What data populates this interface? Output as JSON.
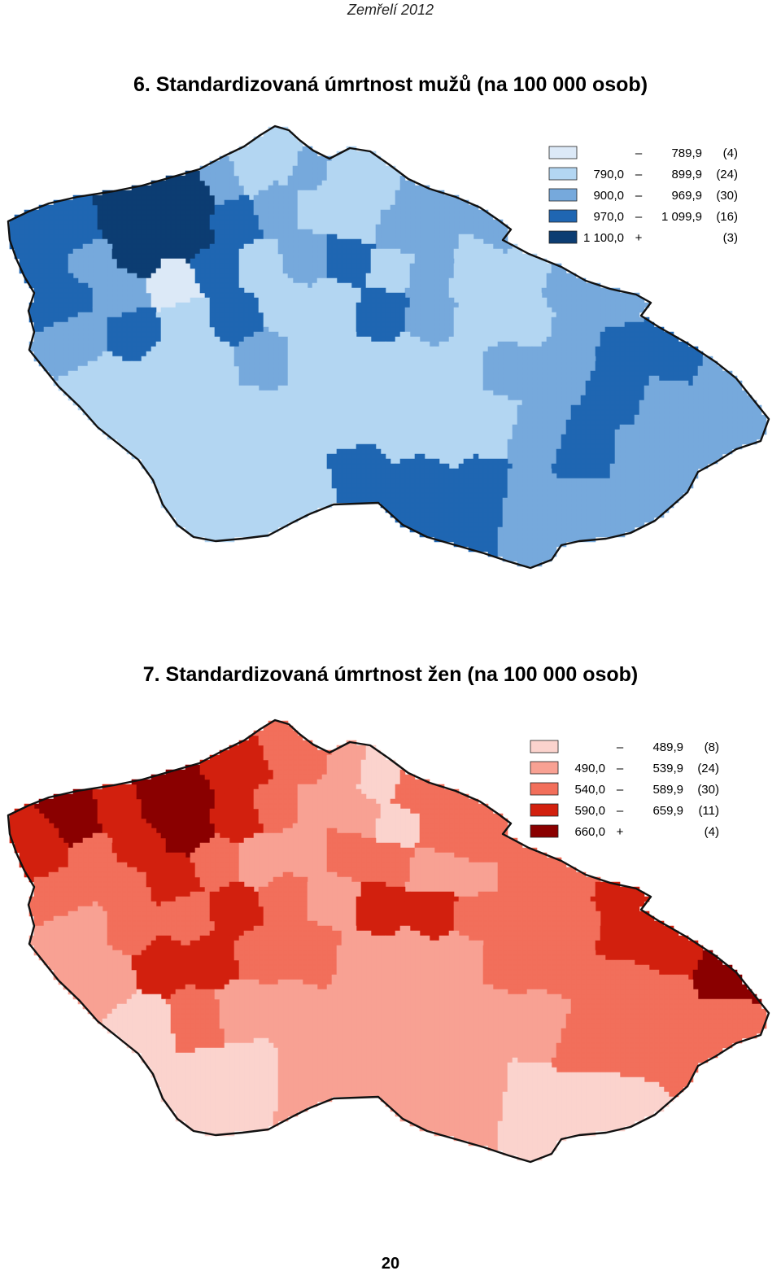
{
  "header": {
    "text": "Zemřelí 2012"
  },
  "maps": [
    {
      "title": "6. Standardizovaná úmrtnost mužů (na 100 000 osob)",
      "legend": [
        {
          "from": "",
          "sep": "–",
          "to": "789,9",
          "count": "(4)",
          "color": "#dce9f7"
        },
        {
          "from": "790,0",
          "sep": "–",
          "to": "899,9",
          "count": "(24)",
          "color": "#b3d6f2"
        },
        {
          "from": "900,0",
          "sep": "–",
          "to": "969,9",
          "count": "(30)",
          "color": "#76a9dc"
        },
        {
          "from": "970,0",
          "sep": "–",
          "to": "1 099,9",
          "count": "(16)",
          "color": "#1f66b2"
        },
        {
          "from": "1 100,0",
          "sep": "+",
          "to": "",
          "count": "(3)",
          "color": "#0c3d72"
        }
      ]
    },
    {
      "title": "7. Standardizovaná úmrtnost žen (na 100 000 osob)",
      "legend": [
        {
          "from": "",
          "sep": "–",
          "to": "489,9",
          "count": "(8)",
          "color": "#fbd3cd"
        },
        {
          "from": "490,0",
          "sep": "–",
          "to": "539,9",
          "count": "(24)",
          "color": "#f8a193"
        },
        {
          "from": "540,0",
          "sep": "–",
          "to": "589,9",
          "count": "(30)",
          "color": "#f26f5b"
        },
        {
          "from": "590,0",
          "sep": "–",
          "to": "659,9",
          "count": "(11)",
          "color": "#d2200e"
        },
        {
          "from": "660,0",
          "sep": "+",
          "to": "",
          "count": "(4)",
          "color": "#8a0000"
        }
      ]
    }
  ],
  "page_number": "20"
}
